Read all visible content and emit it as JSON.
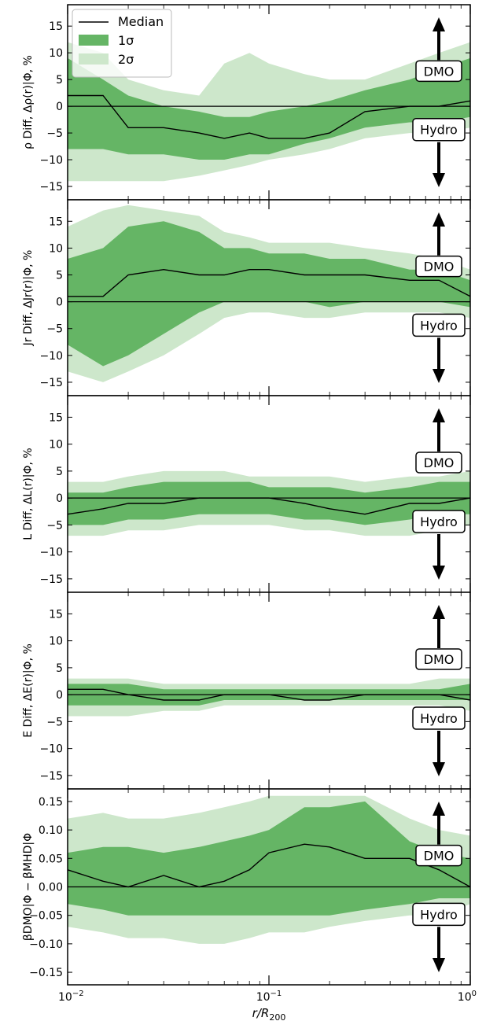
{
  "figure": {
    "xlabel": "r/R",
    "xlabel_sub": "200",
    "xticks": [
      {
        "base": "10",
        "exp": "−2"
      },
      {
        "base": "10",
        "exp": "−1"
      },
      {
        "base": "10",
        "exp": "0"
      }
    ],
    "arrow_up_label": "DMO",
    "arrow_down_label": "Hydro",
    "legend": [
      {
        "label": "Median",
        "kind": "line",
        "color": "#000000"
      },
      {
        "label": "1σ",
        "kind": "patch",
        "color": "#65b565"
      },
      {
        "label": "2σ",
        "kind": "patch",
        "color": "#cde7cb"
      }
    ]
  },
  "chart_data": [
    {
      "type": "area",
      "ylabel": "ρ Diff, Δρ(r)|Φ, %",
      "xscale": "log",
      "xlim": [
        0.01,
        1
      ],
      "ylim": [
        -17.5,
        19
      ],
      "yticks": [
        15,
        10,
        5,
        0,
        -5,
        -10,
        -15
      ],
      "x": [
        0.01,
        0.015,
        0.02,
        0.03,
        0.045,
        0.06,
        0.08,
        0.1,
        0.15,
        0.2,
        0.3,
        0.5,
        0.7,
        1.0
      ],
      "series": [
        {
          "name": "Median",
          "values": [
            2,
            2,
            -4,
            -4,
            -5,
            -6,
            -5,
            -6,
            -6,
            -5,
            -1,
            0,
            0,
            1
          ]
        },
        {
          "name": "1σ",
          "lower": [
            -8,
            -8,
            -9,
            -9,
            -10,
            -10,
            -9,
            -9,
            -7,
            -6,
            -4,
            -3,
            -3,
            -2
          ],
          "upper": [
            9,
            5,
            2,
            0,
            -1,
            -2,
            -2,
            -1,
            0,
            1,
            3,
            5,
            7,
            9
          ]
        },
        {
          "name": "2σ",
          "lower": [
            -14,
            -14,
            -14,
            -14,
            -13,
            -12,
            -11,
            -10,
            -9,
            -8,
            -6,
            -5,
            -5,
            -4
          ],
          "upper": [
            12,
            10,
            5,
            3,
            2,
            8,
            10,
            8,
            6,
            5,
            5,
            8,
            10,
            12
          ]
        }
      ]
    },
    {
      "type": "area",
      "ylabel": "Jr Diff, ΔJr(r)|Φ, %",
      "xscale": "log",
      "xlim": [
        0.01,
        1
      ],
      "ylim": [
        -17.5,
        19
      ],
      "yticks": [
        15,
        10,
        5,
        0,
        -5,
        -10,
        -15
      ],
      "x": [
        0.01,
        0.015,
        0.02,
        0.03,
        0.045,
        0.06,
        0.08,
        0.1,
        0.15,
        0.2,
        0.3,
        0.5,
        0.7,
        1.0
      ],
      "series": [
        {
          "name": "Median",
          "values": [
            1,
            1,
            5,
            6,
            5,
            5,
            6,
            6,
            5,
            5,
            5,
            4,
            4,
            1
          ]
        },
        {
          "name": "1σ",
          "lower": [
            -8,
            -12,
            -10,
            -6,
            -2,
            0,
            0,
            0,
            0,
            -1,
            0,
            0,
            0,
            -1
          ],
          "upper": [
            8,
            10,
            14,
            15,
            13,
            10,
            10,
            9,
            9,
            8,
            8,
            6,
            6,
            4
          ]
        },
        {
          "name": "2σ",
          "lower": [
            -13,
            -15,
            -13,
            -10,
            -6,
            -3,
            -2,
            -2,
            -3,
            -3,
            -2,
            -2,
            -2,
            -3
          ],
          "upper": [
            14,
            17,
            18,
            17,
            16,
            13,
            12,
            11,
            11,
            11,
            10,
            9,
            8,
            6
          ]
        }
      ]
    },
    {
      "type": "area",
      "ylabel": "L Diff, ΔL(r)|Φ, %",
      "xscale": "log",
      "xlim": [
        0.01,
        1
      ],
      "ylim": [
        -17.5,
        19
      ],
      "yticks": [
        15,
        10,
        5,
        0,
        -5,
        -10,
        -15
      ],
      "x": [
        0.01,
        0.015,
        0.02,
        0.03,
        0.045,
        0.06,
        0.08,
        0.1,
        0.15,
        0.2,
        0.3,
        0.5,
        0.7,
        1.0
      ],
      "series": [
        {
          "name": "Median",
          "values": [
            -3,
            -2,
            -1,
            -1,
            0,
            0,
            0,
            0,
            -1,
            -2,
            -3,
            -1,
            -1,
            0
          ]
        },
        {
          "name": "1σ",
          "lower": [
            -5,
            -5,
            -4,
            -4,
            -3,
            -3,
            -3,
            -3,
            -4,
            -4,
            -5,
            -4,
            -3,
            -3
          ],
          "upper": [
            1,
            1,
            2,
            3,
            3,
            3,
            3,
            2,
            2,
            2,
            1,
            2,
            3,
            3
          ]
        },
        {
          "name": "2σ",
          "lower": [
            -7,
            -7,
            -6,
            -6,
            -5,
            -5,
            -5,
            -5,
            -6,
            -6,
            -7,
            -7,
            -6,
            -5
          ],
          "upper": [
            3,
            3,
            4,
            5,
            5,
            5,
            4,
            4,
            4,
            4,
            3,
            4,
            4,
            5
          ]
        }
      ]
    },
    {
      "type": "area",
      "ylabel": "E Diff, ΔE(r)|Φ, %",
      "xscale": "log",
      "xlim": [
        0.01,
        1
      ],
      "ylim": [
        -17.5,
        19
      ],
      "yticks": [
        15,
        10,
        5,
        0,
        -5,
        -10,
        -15
      ],
      "x": [
        0.01,
        0.015,
        0.02,
        0.03,
        0.045,
        0.06,
        0.08,
        0.1,
        0.15,
        0.2,
        0.3,
        0.5,
        0.7,
        1.0
      ],
      "series": [
        {
          "name": "Median",
          "values": [
            1,
            1,
            0,
            -1,
            -1,
            0,
            0,
            0,
            -1,
            -1,
            0,
            0,
            0,
            -1
          ]
        },
        {
          "name": "1σ",
          "lower": [
            -2,
            -2,
            -2,
            -2,
            -2,
            -1,
            -1,
            -1,
            -1,
            -1,
            -1,
            -1,
            -1,
            -1
          ],
          "upper": [
            2,
            2,
            2,
            1,
            1,
            1,
            1,
            1,
            1,
            1,
            1,
            1,
            1,
            2
          ]
        },
        {
          "name": "2σ",
          "lower": [
            -4,
            -4,
            -4,
            -3,
            -3,
            -2,
            -2,
            -2,
            -2,
            -2,
            -2,
            -2,
            -2,
            -3
          ],
          "upper": [
            3,
            3,
            3,
            2,
            2,
            2,
            2,
            2,
            2,
            2,
            2,
            2,
            3,
            3
          ]
        }
      ]
    },
    {
      "type": "area",
      "ylabel": "βDMO|Φ − βMHD|Φ",
      "xscale": "log",
      "xlim": [
        0.01,
        1
      ],
      "ylim": [
        -0.172,
        0.172
      ],
      "yticks": [
        0.15,
        0.1,
        0.05,
        0.0,
        -0.05,
        -0.1,
        -0.15
      ],
      "x": [
        0.01,
        0.015,
        0.02,
        0.03,
        0.045,
        0.06,
        0.08,
        0.1,
        0.15,
        0.2,
        0.3,
        0.5,
        0.7,
        1.0
      ],
      "series": [
        {
          "name": "Median",
          "values": [
            0.03,
            0.01,
            0,
            0.02,
            0,
            0.01,
            0.03,
            0.06,
            0.075,
            0.07,
            0.05,
            0.05,
            0.03,
            0
          ]
        },
        {
          "name": "1σ",
          "lower": [
            -0.03,
            -0.04,
            -0.05,
            -0.05,
            -0.05,
            -0.05,
            -0.05,
            -0.05,
            -0.05,
            -0.05,
            -0.04,
            -0.03,
            -0.02,
            -0.02
          ],
          "upper": [
            0.06,
            0.07,
            0.07,
            0.06,
            0.07,
            0.08,
            0.09,
            0.1,
            0.14,
            0.14,
            0.15,
            0.08,
            0.06,
            0.05
          ]
        },
        {
          "name": "2σ",
          "lower": [
            -0.07,
            -0.08,
            -0.09,
            -0.09,
            -0.1,
            -0.1,
            -0.09,
            -0.08,
            -0.08,
            -0.07,
            -0.06,
            -0.05,
            -0.05,
            -0.03
          ],
          "upper": [
            0.12,
            0.13,
            0.12,
            0.12,
            0.13,
            0.14,
            0.15,
            0.16,
            0.16,
            0.16,
            0.16,
            0.12,
            0.1,
            0.09
          ]
        }
      ]
    }
  ]
}
